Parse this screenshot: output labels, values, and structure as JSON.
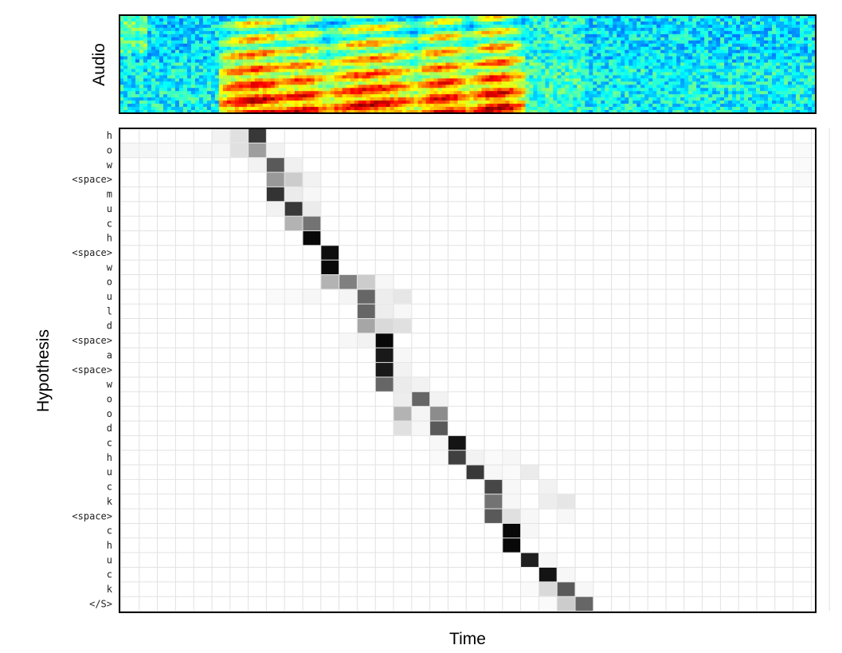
{
  "chart_data": [
    {
      "type": "heatmap",
      "panel": "spectrogram",
      "ylabel": "Audio",
      "colormap": "jet",
      "note_values": "frequency-by-time energy, estimated qualitatively; 4 broad voiced bursts visible",
      "energy_bursts": [
        {
          "t_start": 6,
          "t_end": 9,
          "level": 0.95
        },
        {
          "t_start": 9,
          "t_end": 11,
          "level": 0.85
        },
        {
          "t_start": 12,
          "t_end": 16,
          "level": 0.9
        },
        {
          "t_start": 17,
          "t_end": 19,
          "level": 0.9
        },
        {
          "t_start": 20,
          "t_end": 22,
          "level": 0.95
        }
      ]
    },
    {
      "type": "heatmap",
      "panel": "attention",
      "xlabel": "Time",
      "ylabel": "Hypothesis",
      "n_time_steps": 39,
      "grid": true,
      "rows": [
        "h",
        "o",
        "w",
        "<space>",
        "m",
        "u",
        "c",
        "h",
        "<space>",
        "w",
        "o",
        "u",
        "l",
        "d",
        "<space>",
        "a",
        "<space>",
        "w",
        "o",
        "o",
        "d",
        "c",
        "h",
        "u",
        "c",
        "k",
        "<space>",
        "c",
        "h",
        "u",
        "c",
        "k",
        "</S>"
      ],
      "cells": [
        [
          0,
          5,
          0.05
        ],
        [
          0,
          6,
          0.12
        ],
        [
          0,
          7,
          0.78
        ],
        [
          1,
          0,
          0.03
        ],
        [
          1,
          1,
          0.03
        ],
        [
          1,
          2,
          0.02
        ],
        [
          1,
          3,
          0.02
        ],
        [
          1,
          4,
          0.03
        ],
        [
          1,
          5,
          0.03
        ],
        [
          1,
          6,
          0.12
        ],
        [
          1,
          7,
          0.38
        ],
        [
          1,
          8,
          0.05
        ],
        [
          1,
          37,
          0.02
        ],
        [
          2,
          7,
          0.05
        ],
        [
          2,
          8,
          0.65
        ],
        [
          2,
          9,
          0.06
        ],
        [
          2,
          37,
          0.02
        ],
        [
          3,
          8,
          0.4
        ],
        [
          3,
          9,
          0.2
        ],
        [
          3,
          10,
          0.05
        ],
        [
          3,
          37,
          0.02
        ],
        [
          4,
          8,
          0.8
        ],
        [
          4,
          9,
          0.08
        ],
        [
          4,
          10,
          0.03
        ],
        [
          5,
          8,
          0.05
        ],
        [
          5,
          9,
          0.78
        ],
        [
          5,
          10,
          0.08
        ],
        [
          6,
          9,
          0.3
        ],
        [
          6,
          10,
          0.55
        ],
        [
          7,
          10,
          0.97
        ],
        [
          8,
          11,
          0.95
        ],
        [
          9,
          11,
          0.97
        ],
        [
          10,
          11,
          0.3
        ],
        [
          10,
          12,
          0.5
        ],
        [
          10,
          13,
          0.2
        ],
        [
          10,
          14,
          0.03
        ],
        [
          11,
          8,
          0.02
        ],
        [
          11,
          9,
          0.02
        ],
        [
          11,
          10,
          0.03
        ],
        [
          11,
          12,
          0.04
        ],
        [
          11,
          13,
          0.6
        ],
        [
          11,
          14,
          0.07
        ],
        [
          11,
          15,
          0.1
        ],
        [
          12,
          13,
          0.6
        ],
        [
          12,
          14,
          0.07
        ],
        [
          12,
          15,
          0.03
        ],
        [
          13,
          13,
          0.35
        ],
        [
          13,
          14,
          0.15
        ],
        [
          13,
          15,
          0.12
        ],
        [
          14,
          12,
          0.03
        ],
        [
          14,
          13,
          0.05
        ],
        [
          14,
          14,
          0.97
        ],
        [
          15,
          14,
          0.9
        ],
        [
          15,
          15,
          0.03
        ],
        [
          16,
          14,
          0.9
        ],
        [
          16,
          15,
          0.05
        ],
        [
          17,
          14,
          0.6
        ],
        [
          17,
          15,
          0.08
        ],
        [
          17,
          16,
          0.05
        ],
        [
          18,
          15,
          0.07
        ],
        [
          18,
          16,
          0.6
        ],
        [
          18,
          17,
          0.05
        ],
        [
          19,
          15,
          0.3
        ],
        [
          19,
          16,
          0.04
        ],
        [
          19,
          17,
          0.45
        ],
        [
          20,
          15,
          0.12
        ],
        [
          20,
          16,
          0.03
        ],
        [
          20,
          17,
          0.65
        ],
        [
          21,
          17,
          0.03
        ],
        [
          21,
          18,
          0.92
        ],
        [
          22,
          17,
          0.02
        ],
        [
          22,
          18,
          0.75
        ],
        [
          22,
          19,
          0.05
        ],
        [
          22,
          20,
          0.02
        ],
        [
          22,
          21,
          0.03
        ],
        [
          23,
          19,
          0.78
        ],
        [
          23,
          20,
          0.03
        ],
        [
          23,
          21,
          0.02
        ],
        [
          23,
          22,
          0.08
        ],
        [
          24,
          20,
          0.72
        ],
        [
          24,
          21,
          0.03
        ],
        [
          24,
          23,
          0.05
        ],
        [
          25,
          20,
          0.55
        ],
        [
          25,
          21,
          0.03
        ],
        [
          25,
          23,
          0.07
        ],
        [
          25,
          24,
          0.1
        ],
        [
          26,
          20,
          0.65
        ],
        [
          26,
          21,
          0.12
        ],
        [
          26,
          22,
          0.03
        ],
        [
          26,
          24,
          0.03
        ],
        [
          27,
          21,
          0.97
        ],
        [
          27,
          22,
          0.03
        ],
        [
          28,
          21,
          0.97
        ],
        [
          29,
          22,
          0.88
        ],
        [
          29,
          23,
          0.03
        ],
        [
          30,
          23,
          0.92
        ],
        [
          30,
          24,
          0.03
        ],
        [
          31,
          22,
          0.02
        ],
        [
          31,
          23,
          0.15
        ],
        [
          31,
          24,
          0.65
        ],
        [
          31,
          25,
          0.03
        ],
        [
          32,
          23,
          0.02
        ],
        [
          32,
          24,
          0.2
        ],
        [
          32,
          25,
          0.6
        ]
      ]
    }
  ]
}
